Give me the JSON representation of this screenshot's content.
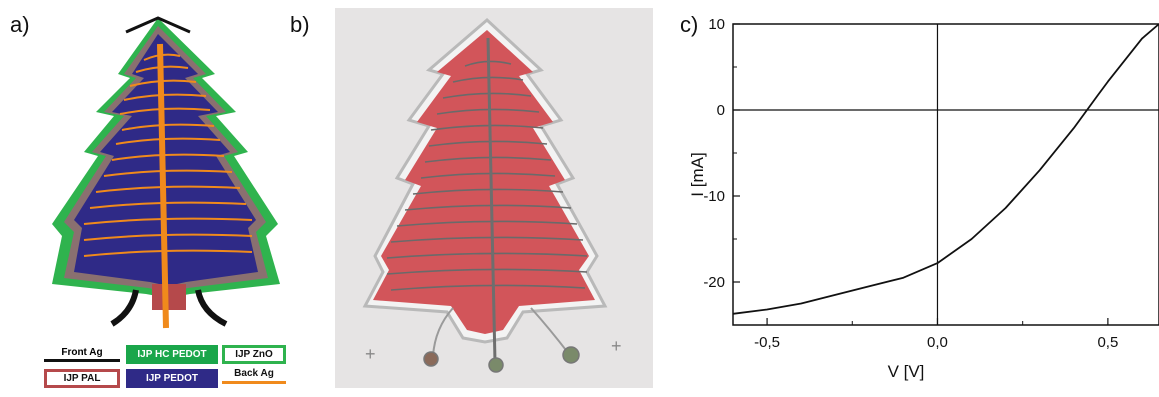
{
  "panels": {
    "a_label": "a)",
    "b_label": "b)",
    "c_label": "c)"
  },
  "legend": {
    "front_ag": "Front Ag",
    "hc_pedot": "IJP HC PEDOT",
    "zno": "IJP ZnO",
    "pal": "IJP PAL",
    "pedot": "IJP PEDOT",
    "back_ag": "Back Ag"
  },
  "colors": {
    "front_ag": "#111111",
    "hc_pedot": "#1aa64a",
    "zno": "#2fb34e",
    "pal": "#b5494b",
    "pedot": "#2f2a87",
    "back_ag": "#f08a1c",
    "photo_bg": "#e6e4e4",
    "photo_tree": "#d2555a"
  },
  "chart_data": {
    "type": "line",
    "xlabel": "V [V]",
    "ylabel": "I [mA]",
    "xlim": [
      -0.6,
      0.65
    ],
    "ylim": [
      -25,
      10
    ],
    "xticks": [
      -0.5,
      0.0,
      0.5
    ],
    "xtick_labels": [
      "-0,5",
      "0,0",
      "0,5"
    ],
    "yticks": [
      10,
      0,
      -10,
      -20
    ],
    "ytick_labels": [
      "10",
      "0",
      "-10",
      "-20"
    ],
    "grid": false,
    "series": [
      {
        "x": [
          -0.6,
          -0.5,
          -0.4,
          -0.3,
          -0.2,
          -0.1,
          0.0,
          0.1,
          0.2,
          0.3,
          0.4,
          0.47,
          0.5,
          0.6,
          0.65
        ],
        "y": [
          -23.7,
          -23.2,
          -22.5,
          -21.5,
          -20.5,
          -19.5,
          -17.8,
          -15.0,
          -11.4,
          -7.0,
          -2.1,
          1.7,
          3.3,
          8.3,
          10.0
        ]
      }
    ]
  }
}
